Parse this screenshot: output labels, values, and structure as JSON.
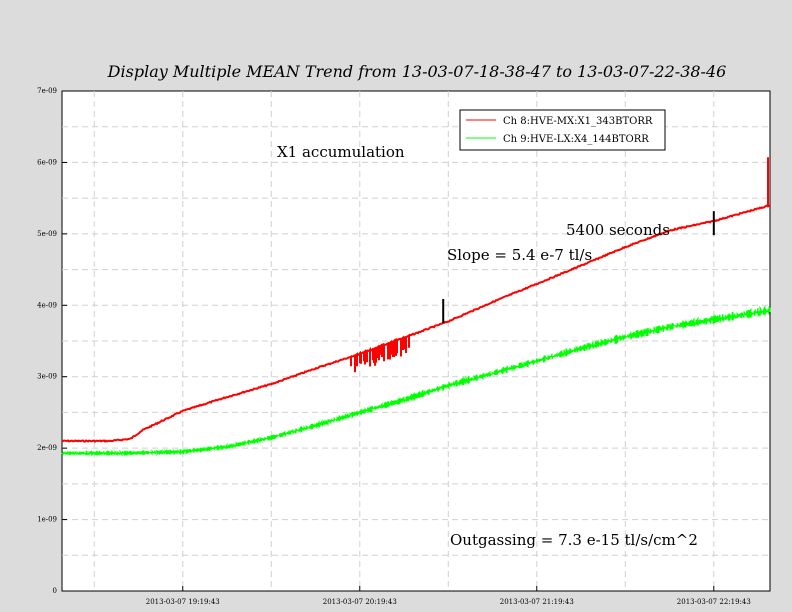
{
  "chart_data": {
    "type": "line",
    "title": "Display Multiple MEAN Trend from 13-03-07-18-38-47 to 13-03-07-22-38-46",
    "xlabel": "",
    "ylabel": "",
    "x_ticks": [
      "2013-03-07 19:19:43",
      "2013-03-07 20:19:43",
      "2013-03-07 21:19:43",
      "2013-03-07 22:19:43"
    ],
    "y_ticks": [
      "0",
      "1e-09",
      "2e-09",
      "3e-09",
      "4e-09",
      "5e-09",
      "6e-09",
      "7e-09"
    ],
    "ylim": [
      0,
      7e-09
    ],
    "grid": true,
    "legend_position": "top-right",
    "series": [
      {
        "name": "Ch 8:HVE-MX:X1_343BTORR",
        "color": "#ff0000",
        "points": [
          [
            "2013-03-07 18:38:47",
            2.1e-09
          ],
          [
            "2013-03-07 18:55:00",
            2.1e-09
          ],
          [
            "2013-03-07 19:02:00",
            2.13e-09
          ],
          [
            "2013-03-07 19:06:00",
            2.25e-09
          ],
          [
            "2013-03-07 19:19:43",
            2.52e-09
          ],
          [
            "2013-03-07 19:35:00",
            2.72e-09
          ],
          [
            "2013-03-07 19:50:00",
            2.9e-09
          ],
          [
            "2013-03-07 20:05:00",
            3.12e-09
          ],
          [
            "2013-03-07 20:19:43",
            3.32e-09
          ],
          [
            "2013-03-07 20:35:00",
            3.55e-09
          ],
          [
            "2013-03-07 20:50:00",
            3.78e-09
          ],
          [
            "2013-03-07 21:05:00",
            4.05e-09
          ],
          [
            "2013-03-07 21:19:43",
            4.3e-09
          ],
          [
            "2013-03-07 21:35:00",
            4.56e-09
          ],
          [
            "2013-03-07 21:50:00",
            4.82e-09
          ],
          [
            "2013-03-07 22:05:00",
            5.05e-09
          ],
          [
            "2013-03-07 22:19:43",
            5.18e-09
          ],
          [
            "2013-03-07 22:38:46",
            5.4e-09
          ]
        ]
      },
      {
        "name": "Ch 9:HVE-LX:X4_144BTORR",
        "color": "#00ff00",
        "points": [
          [
            "2013-03-07 18:38:47",
            1.93e-09
          ],
          [
            "2013-03-07 19:00:00",
            1.93e-09
          ],
          [
            "2013-03-07 19:19:43",
            1.95e-09
          ],
          [
            "2013-03-07 19:35:00",
            2.02e-09
          ],
          [
            "2013-03-07 19:50:00",
            2.15e-09
          ],
          [
            "2013-03-07 20:05:00",
            2.32e-09
          ],
          [
            "2013-03-07 20:19:43",
            2.5e-09
          ],
          [
            "2013-03-07 20:35:00",
            2.68e-09
          ],
          [
            "2013-03-07 20:50:00",
            2.88e-09
          ],
          [
            "2013-03-07 21:05:00",
            3.05e-09
          ],
          [
            "2013-03-07 21:19:43",
            3.22e-09
          ],
          [
            "2013-03-07 21:35:00",
            3.4e-09
          ],
          [
            "2013-03-07 21:50:00",
            3.56e-09
          ],
          [
            "2013-03-07 22:05:00",
            3.7e-09
          ],
          [
            "2013-03-07 22:19:43",
            3.8e-09
          ],
          [
            "2013-03-07 22:38:46",
            3.93e-09
          ]
        ]
      }
    ],
    "annotations": [
      {
        "text": "X1 accumulation"
      },
      {
        "text": "5400 seconds"
      },
      {
        "text": "Slope = 5.4 e-7 tl/s"
      },
      {
        "text": "Outgassing = 7.3 e-15 tl/s/cm^2"
      }
    ],
    "markers": [
      {
        "x": "2013-03-07 20:48:00",
        "y": 3.92e-09
      },
      {
        "x": "2013-03-07 22:19:43",
        "y": 5.15e-09
      }
    ]
  }
}
